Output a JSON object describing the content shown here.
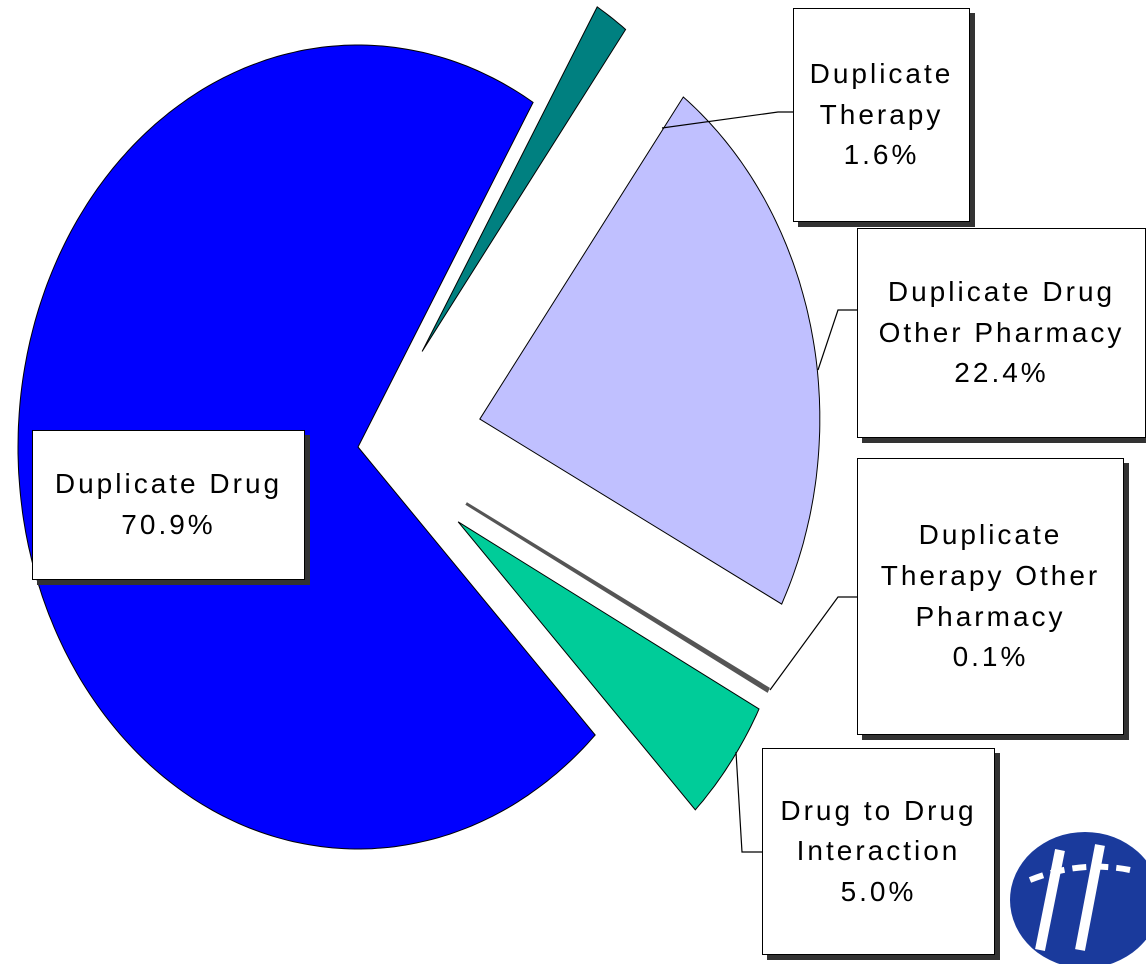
{
  "chart_data": {
    "type": "pie",
    "categories": [
      "Duplicate Therapy",
      "Duplicate Drug Other Pharmacy",
      "Duplicate Therapy Other Pharmacy",
      "Drug to Drug Interaction",
      "Duplicate Drug"
    ],
    "values": [
      1.6,
      22.4,
      0.1,
      5.0,
      70.9
    ],
    "value_labels": [
      "1.6%",
      "22.4%",
      "0.1%",
      "5.0%",
      "70.9%"
    ],
    "colors": [
      "#008080",
      "#c0c0ff",
      "#555555",
      "#00cc99",
      "#0000ff"
    ]
  }
}
